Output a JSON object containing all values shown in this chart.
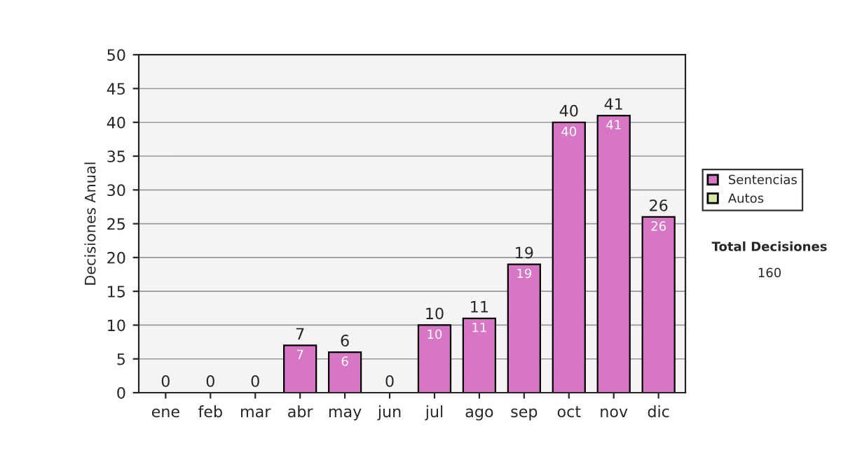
{
  "chart_data": {
    "type": "bar",
    "ylabel": "Decisiones Anual",
    "categories": [
      "ene",
      "feb",
      "mar",
      "abr",
      "may",
      "jun",
      "jul",
      "ago",
      "sep",
      "oct",
      "nov",
      "dic"
    ],
    "stacked": true,
    "series": [
      {
        "name": "Sentencias",
        "color": "#d676c4",
        "values": [
          0,
          0,
          0,
          7,
          6,
          0,
          10,
          11,
          19,
          40,
          41,
          26
        ],
        "value_labels": [
          null,
          null,
          null,
          "7",
          "6",
          null,
          "10",
          "11",
          "19",
          "40",
          "41",
          "26"
        ]
      },
      {
        "name": "Autos",
        "color": "#d4e6a0",
        "values": [
          0,
          0,
          0,
          0,
          0,
          0,
          0,
          0,
          0,
          0,
          0,
          0
        ]
      }
    ],
    "totals": [
      "0",
      "0",
      "0",
      "7",
      "6",
      "0",
      "10",
      "11",
      "19",
      "40",
      "41",
      "26"
    ],
    "ylim": [
      0,
      50
    ],
    "yticks": [
      0,
      5,
      10,
      15,
      20,
      25,
      30,
      35,
      40,
      45,
      50
    ],
    "grid": "y",
    "legend": "right",
    "annotations": [
      "Total Decisiones",
      "160"
    ]
  }
}
